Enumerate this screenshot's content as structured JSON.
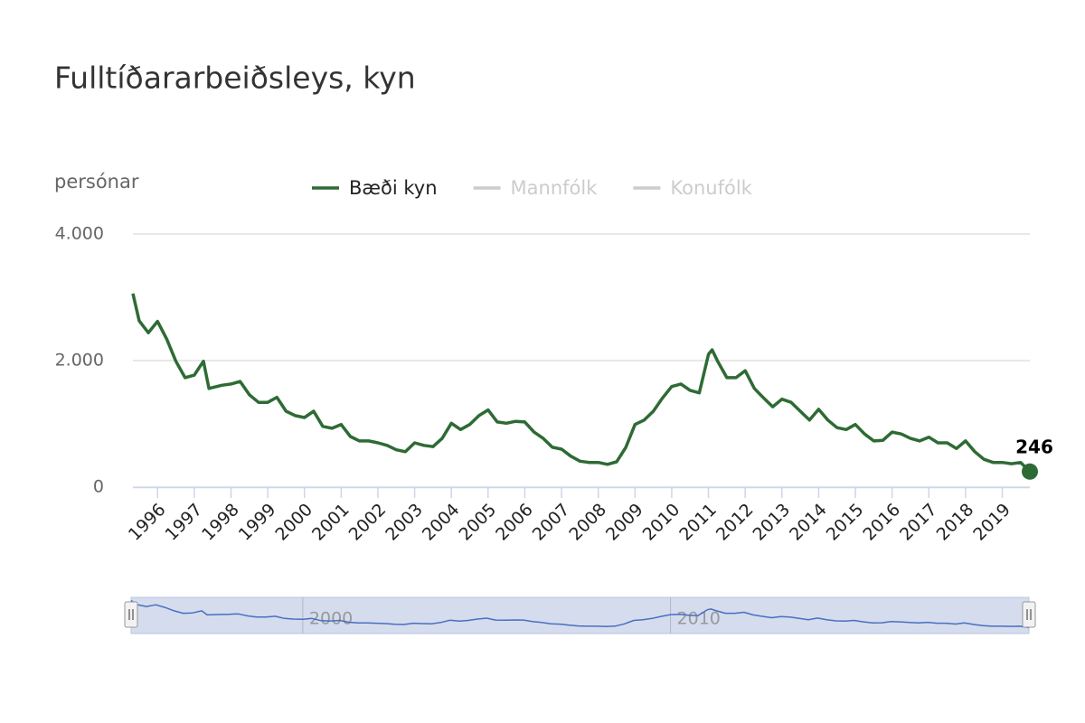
{
  "chart_data": {
    "type": "line",
    "title": "Fulltíðararbeiðsleys, kyn",
    "y_axis_label": "persónar",
    "x": [
      1995.33,
      1995.5,
      1995.75,
      1996.0,
      1996.25,
      1996.5,
      1996.75,
      1997.0,
      1997.25,
      1997.4,
      1997.75,
      1998.0,
      1998.25,
      1998.5,
      1998.75,
      1999.0,
      1999.25,
      1999.5,
      1999.75,
      2000.0,
      2000.25,
      2000.5,
      2000.75,
      2001.0,
      2001.25,
      2001.5,
      2001.75,
      2002.0,
      2002.25,
      2002.5,
      2002.75,
      2003.0,
      2003.25,
      2003.5,
      2003.75,
      2004.0,
      2004.25,
      2004.5,
      2004.75,
      2005.0,
      2005.25,
      2005.5,
      2005.75,
      2006.0,
      2006.25,
      2006.5,
      2006.75,
      2007.0,
      2007.25,
      2007.5,
      2007.75,
      2008.0,
      2008.25,
      2008.5,
      2008.75,
      2009.0,
      2009.25,
      2009.5,
      2009.75,
      2010.0,
      2010.25,
      2010.5,
      2010.75,
      2011.0,
      2011.1,
      2011.25,
      2011.5,
      2011.75,
      2012.0,
      2012.25,
      2012.5,
      2012.75,
      2013.0,
      2013.25,
      2013.5,
      2013.75,
      2014.0,
      2014.25,
      2014.5,
      2014.75,
      2015.0,
      2015.25,
      2015.5,
      2015.75,
      2016.0,
      2016.25,
      2016.5,
      2016.75,
      2017.0,
      2017.25,
      2017.5,
      2017.75,
      2018.0,
      2018.25,
      2018.5,
      2018.75,
      2019.0,
      2019.25,
      2019.5,
      2019.75
    ],
    "series": [
      {
        "name": "Bæði kyn",
        "color": "#2e6b34",
        "values": [
          3060,
          2630,
          2440,
          2620,
          2340,
          1990,
          1730,
          1770,
          1990,
          1560,
          1610,
          1630,
          1670,
          1460,
          1340,
          1340,
          1420,
          1200,
          1130,
          1100,
          1200,
          960,
          930,
          990,
          800,
          730,
          730,
          700,
          660,
          590,
          560,
          700,
          660,
          640,
          770,
          1010,
          910,
          990,
          1130,
          1220,
          1030,
          1010,
          1040,
          1030,
          870,
          770,
          630,
          600,
          490,
          410,
          390,
          390,
          360,
          400,
          630,
          990,
          1060,
          1200,
          1410,
          1590,
          1630,
          1530,
          1490,
          2100,
          2170,
          1990,
          1730,
          1730,
          1840,
          1560,
          1410,
          1270,
          1390,
          1340,
          1200,
          1060,
          1230,
          1060,
          940,
          910,
          990,
          840,
          730,
          740,
          870,
          840,
          770,
          730,
          790,
          700,
          700,
          610,
          730,
          560,
          440,
          390,
          390,
          370,
          390,
          246
        ]
      },
      {
        "name": "Mannfólk",
        "color": "#cccccc",
        "visible": false
      },
      {
        "name": "Konufólk",
        "color": "#cccccc",
        "visible": false
      }
    ],
    "xlim": [
      1995.33,
      2019.75
    ],
    "xticks": [
      1996,
      1997,
      1998,
      1999,
      2000,
      2001,
      2002,
      2003,
      2004,
      2005,
      2006,
      2007,
      2008,
      2009,
      2010,
      2011,
      2012,
      2013,
      2014,
      2015,
      2016,
      2017,
      2018,
      2019
    ],
    "ylim": [
      0,
      4000
    ],
    "yticks": [
      {
        "value": 0,
        "label": "0"
      },
      {
        "value": 2000,
        "label": "2.000"
      },
      {
        "value": 4000,
        "label": "4.000"
      }
    ],
    "grid": true,
    "navigator": {
      "xticks": [
        2000,
        2010
      ],
      "color": "#4a6fc0"
    }
  }
}
